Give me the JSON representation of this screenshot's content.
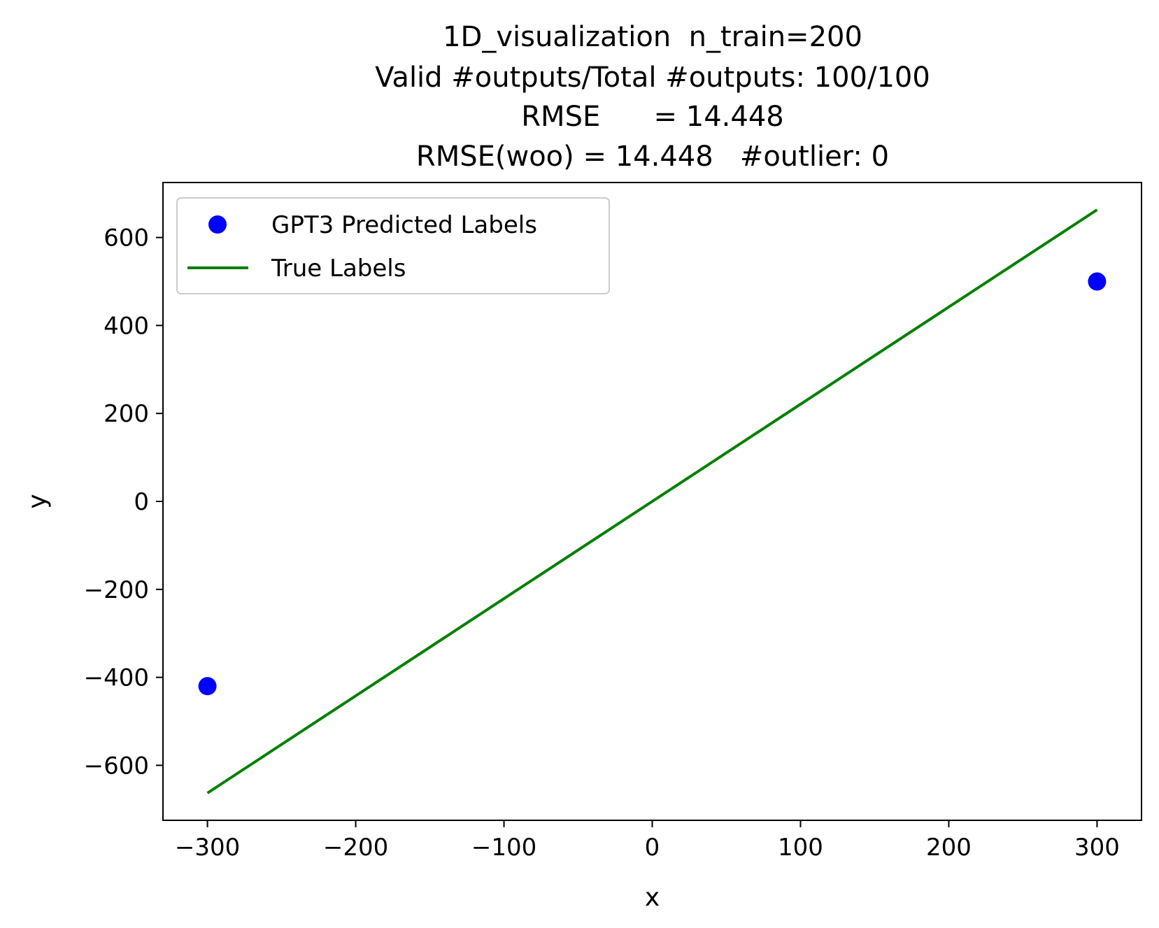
{
  "chart_data": {
    "type": "scatter",
    "title_lines": [
      "1D_visualization  n_train=200",
      "Valid #outputs/Total #outputs: 100/100",
      "RMSE      = 14.448",
      "RMSE(woo) = 14.448   #outlier: 0"
    ],
    "xlabel": "x",
    "ylabel": "y",
    "xlim": [
      -330,
      330
    ],
    "ylim": [
      -725,
      725
    ],
    "xticks": [
      -300,
      -200,
      -100,
      0,
      100,
      200,
      300
    ],
    "yticks": [
      -600,
      -400,
      -200,
      0,
      200,
      400,
      600
    ],
    "xtick_labels": [
      "−300",
      "−200",
      "−100",
      "0",
      "100",
      "200",
      "300"
    ],
    "ytick_labels": [
      "−600",
      "−400",
      "−200",
      "0",
      "200",
      "400",
      "600"
    ],
    "grid": false,
    "legend_position": "top-left",
    "series": [
      {
        "name": "GPT3 Predicted Labels",
        "kind": "scatter",
        "color": "#0000ff",
        "x": [
          -300,
          300
        ],
        "y": [
          -420,
          500
        ]
      },
      {
        "name": "True Labels",
        "kind": "line",
        "color": "#008000",
        "x": [
          -300,
          300
        ],
        "y": [
          -663,
          663
        ]
      }
    ]
  }
}
